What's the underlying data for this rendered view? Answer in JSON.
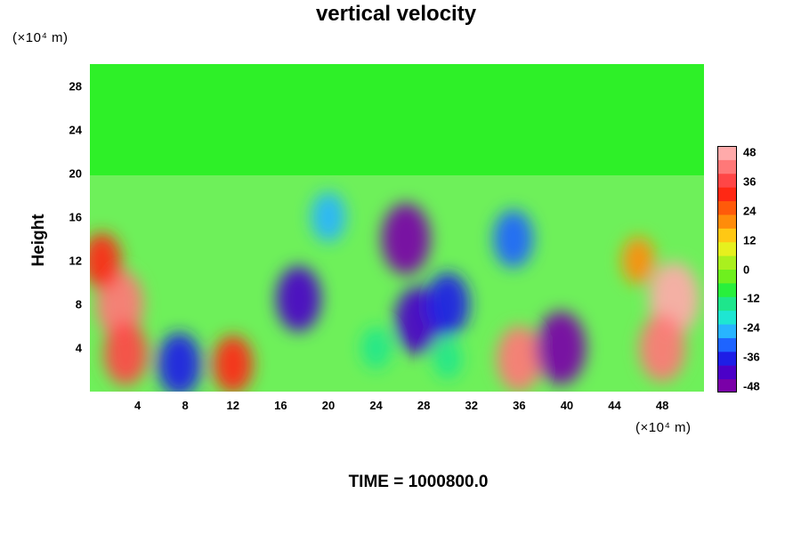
{
  "chart_data": {
    "type": "heatmap",
    "title": "vertical velocity",
    "ylabel": "Height",
    "xlabel": "",
    "x_unit_label": "(×10⁴ m)",
    "y_unit_label": "(×10⁴ m)",
    "footer": "TIME = 1000800.0",
    "xlim": [
      0,
      51.5
    ],
    "ylim": [
      0,
      30
    ],
    "x_ticks": [
      4,
      8,
      12,
      16,
      20,
      24,
      28,
      32,
      36,
      40,
      44,
      48
    ],
    "y_ticks": [
      4,
      8,
      12,
      16,
      20,
      24,
      28
    ],
    "colorbar": {
      "ticks": [
        48,
        36,
        24,
        12,
        0,
        -12,
        -24,
        -36,
        -48
      ],
      "range": [
        -48,
        48
      ],
      "colors": [
        "#7a00a8",
        "#4b00c8",
        "#1e1ee6",
        "#1e64ff",
        "#28b4ff",
        "#1ee6d2",
        "#1ee68c",
        "#28f03c",
        "#6ef01e",
        "#aaf01e",
        "#e6f01e",
        "#ffc814",
        "#ff8c0a",
        "#ff5a0a",
        "#ff2814",
        "#ff4646",
        "#ff7878",
        "#ffaaaa"
      ]
    },
    "features": [
      {
        "x": 2.5,
        "y": 8,
        "value": 42
      },
      {
        "x": 3.0,
        "y": 3.5,
        "value": 36
      },
      {
        "x": 1.0,
        "y": 12,
        "value": 28
      },
      {
        "x": 7.5,
        "y": 2.5,
        "value": -36
      },
      {
        "x": 12.0,
        "y": 2.5,
        "value": 30
      },
      {
        "x": 17.5,
        "y": 8.5,
        "value": -38
      },
      {
        "x": 20.0,
        "y": 16,
        "value": -22
      },
      {
        "x": 26.5,
        "y": 14,
        "value": -44
      },
      {
        "x": 27.5,
        "y": 6.5,
        "value": -40
      },
      {
        "x": 30.0,
        "y": 8,
        "value": -36
      },
      {
        "x": 35.5,
        "y": 14,
        "value": -30
      },
      {
        "x": 36.0,
        "y": 3.0,
        "value": 38
      },
      {
        "x": 39.5,
        "y": 4.0,
        "value": -46
      },
      {
        "x": 49.0,
        "y": 8.5,
        "value": 46
      },
      {
        "x": 48.0,
        "y": 4.0,
        "value": 40
      },
      {
        "x": 46.0,
        "y": 12,
        "value": 20
      },
      {
        "x": 24.0,
        "y": 4.0,
        "value": -14
      },
      {
        "x": 30.0,
        "y": 3.0,
        "value": -12
      }
    ]
  }
}
